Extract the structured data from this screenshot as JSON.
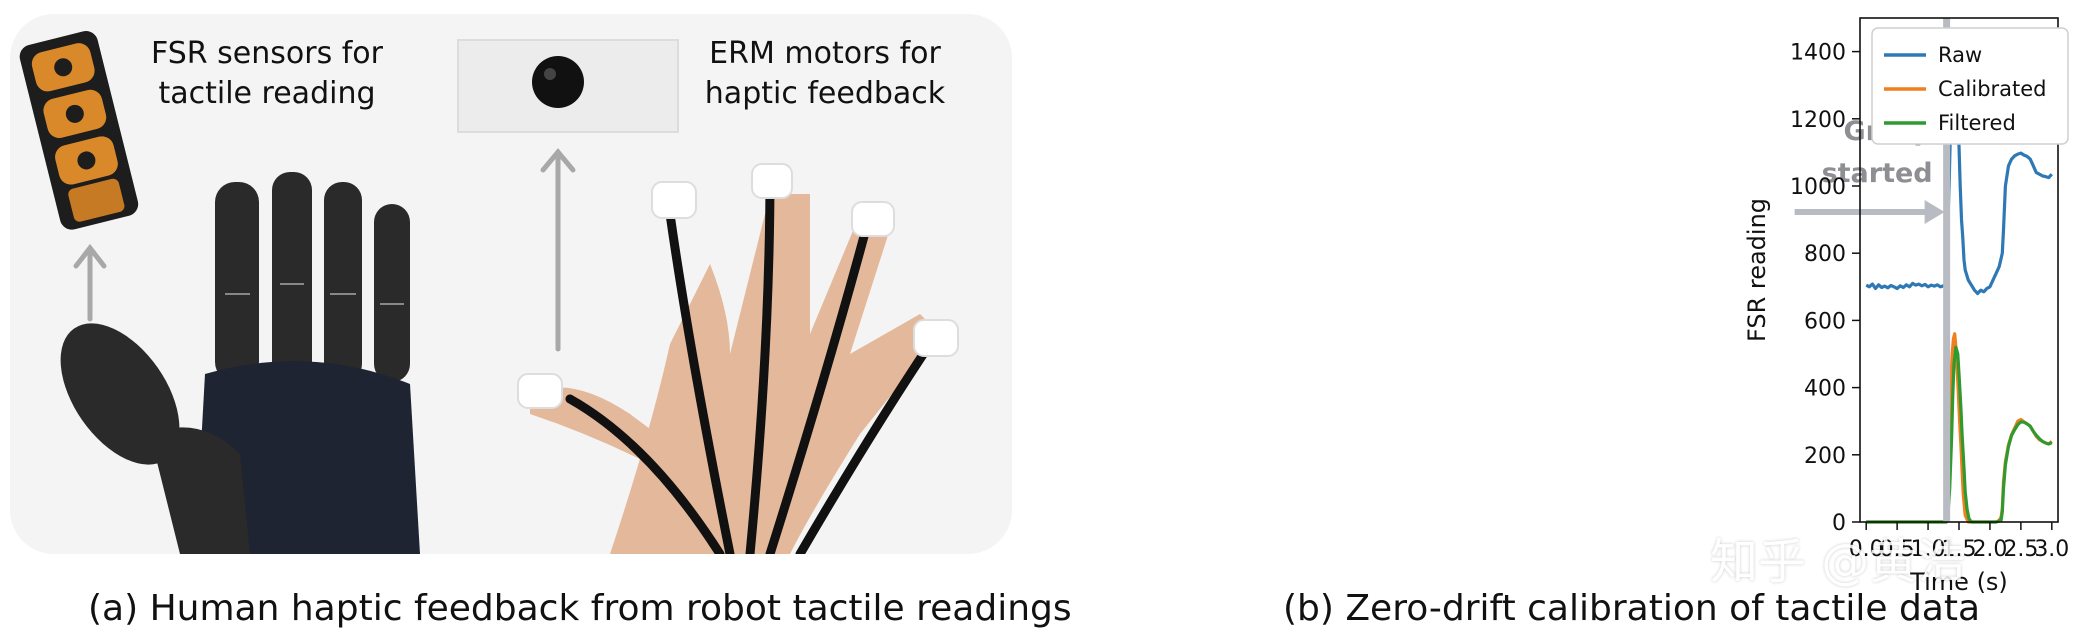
{
  "panel_a": {
    "label_fsr_line1": "FSR sensors for",
    "label_fsr_line2": "tactile reading",
    "label_erm_line1": "ERM motors for",
    "label_erm_line2": "haptic feedback",
    "caption": "(a) Human haptic feedback from robot tactile readings"
  },
  "panel_b": {
    "caption": "(b) Zero-drift calibration of tactile data",
    "annotation_line1": "Grasp",
    "annotation_line2": "started"
  },
  "watermark": "知乎 @黄浩",
  "colors": {
    "raw": "#2e78b5",
    "calibrated": "#f07f1d",
    "filtered": "#2f9a2f",
    "marker": "#b8bcc2"
  },
  "chart_data": {
    "type": "line",
    "xlabel": "Time (s)",
    "ylabel": "FSR reading",
    "xlim": [
      -0.1,
      3.1
    ],
    "ylim": [
      0,
      1500
    ],
    "xticks": [
      0.0,
      0.5,
      1.0,
      1.5,
      2.0,
      2.5,
      3.0
    ],
    "xtick_labels": [
      "0.0",
      "0.5",
      "1.0",
      "1.5",
      "2.0",
      "2.5",
      "3.0"
    ],
    "yticks": [
      0,
      200,
      400,
      600,
      800,
      1000,
      1200,
      1400
    ],
    "ytick_labels": [
      "0",
      "200",
      "400",
      "600",
      "800",
      "1000",
      "1200",
      "1400"
    ],
    "grid": false,
    "legend_position": "top-left",
    "vertical_marker_x": 1.3,
    "series": [
      {
        "name": "Raw",
        "x": [
          0.0,
          0.05,
          0.1,
          0.15,
          0.2,
          0.25,
          0.3,
          0.35,
          0.4,
          0.45,
          0.5,
          0.55,
          0.6,
          0.65,
          0.7,
          0.75,
          0.8,
          0.85,
          0.9,
          0.95,
          1.0,
          1.05,
          1.1,
          1.15,
          1.2,
          1.25,
          1.28,
          1.3,
          1.32,
          1.34,
          1.36,
          1.38,
          1.4,
          1.42,
          1.44,
          1.46,
          1.48,
          1.5,
          1.52,
          1.54,
          1.56,
          1.58,
          1.6,
          1.65,
          1.7,
          1.75,
          1.8,
          1.85,
          1.9,
          1.95,
          2.0,
          2.05,
          2.1,
          2.15,
          2.2,
          2.22,
          2.25,
          2.3,
          2.35,
          2.4,
          2.45,
          2.5,
          2.55,
          2.6,
          2.65,
          2.7,
          2.75,
          2.8,
          2.85,
          2.9,
          2.95,
          3.0
        ],
        "values": [
          705,
          700,
          708,
          695,
          706,
          698,
          702,
          697,
          704,
          700,
          695,
          703,
          698,
          706,
          700,
          710,
          705,
          708,
          703,
          707,
          700,
          705,
          702,
          706,
          700,
          703,
          705,
          760,
          890,
          1000,
          1150,
          1300,
          1350,
          1365,
          1320,
          1250,
          1170,
          1120,
          1000,
          900,
          850,
          780,
          750,
          720,
          705,
          690,
          680,
          690,
          685,
          695,
          700,
          720,
          740,
          760,
          800,
          870,
          1000,
          1060,
          1080,
          1090,
          1095,
          1098,
          1092,
          1088,
          1080,
          1060,
          1040,
          1035,
          1030,
          1028,
          1025,
          1035
        ]
      },
      {
        "name": "Calibrated",
        "x": [
          0.0,
          0.5,
          1.0,
          1.25,
          1.29,
          1.31,
          1.33,
          1.35,
          1.37,
          1.39,
          1.41,
          1.43,
          1.45,
          1.47,
          1.49,
          1.51,
          1.53,
          1.55,
          1.57,
          1.6,
          1.65,
          1.7,
          2.0,
          2.1,
          2.15,
          2.18,
          2.2,
          2.22,
          2.25,
          2.3,
          2.35,
          2.4,
          2.45,
          2.5,
          2.55,
          2.6,
          2.65,
          2.7,
          2.75,
          2.8,
          2.85,
          2.9,
          2.95,
          3.0
        ],
        "values": [
          0,
          0,
          0,
          0,
          0,
          60,
          180,
          320,
          430,
          500,
          545,
          560,
          520,
          460,
          380,
          300,
          230,
          150,
          80,
          20,
          0,
          0,
          0,
          0,
          5,
          15,
          40,
          120,
          180,
          230,
          260,
          280,
          300,
          305,
          298,
          292,
          285,
          270,
          255,
          245,
          240,
          235,
          232,
          240
        ]
      },
      {
        "name": "Filtered",
        "x": [
          0.0,
          0.5,
          1.0,
          1.25,
          1.3,
          1.32,
          1.35,
          1.38,
          1.4,
          1.42,
          1.45,
          1.48,
          1.5,
          1.53,
          1.55,
          1.58,
          1.6,
          1.63,
          1.66,
          1.7,
          2.0,
          2.1,
          2.18,
          2.2,
          2.22,
          2.25,
          2.3,
          2.35,
          2.4,
          2.45,
          2.5,
          2.55,
          2.6,
          2.65,
          2.7,
          2.75,
          2.8,
          2.85,
          2.9,
          2.95,
          3.0
        ],
        "values": [
          0,
          0,
          0,
          0,
          0,
          20,
          100,
          250,
          380,
          470,
          520,
          500,
          440,
          340,
          260,
          160,
          90,
          40,
          10,
          0,
          0,
          0,
          5,
          30,
          100,
          170,
          225,
          258,
          275,
          290,
          298,
          297,
          292,
          285,
          270,
          258,
          248,
          240,
          235,
          232,
          236
        ]
      }
    ]
  }
}
